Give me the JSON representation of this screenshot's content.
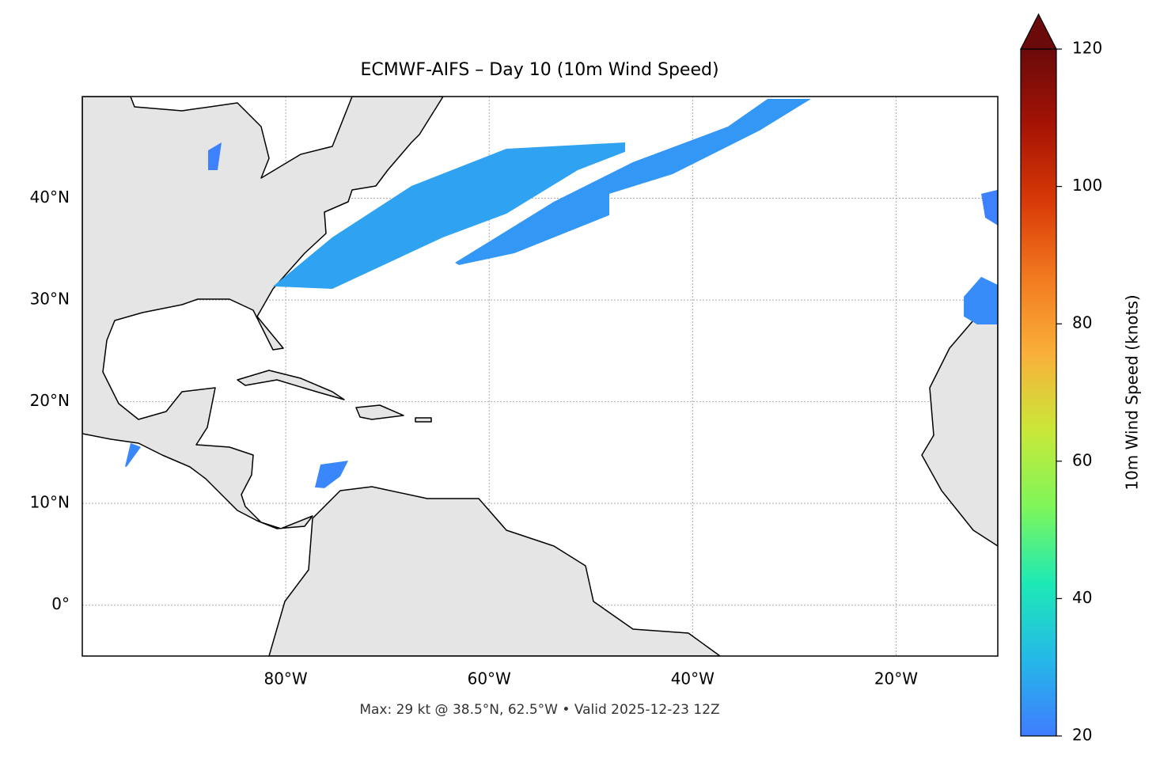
{
  "map": {
    "title": "ECMWF-AIFS – Day 10 (10m Wind Speed)",
    "footer": "Max: 29 kt @ 38.5°N, 62.5°W • Valid 2025-12-23 12Z",
    "xlim": [
      -100,
      -10
    ],
    "ylim": [
      -5,
      50
    ],
    "xticks": [
      {
        "value": -80,
        "label": "80°W"
      },
      {
        "value": -60,
        "label": "60°W"
      },
      {
        "value": -40,
        "label": "40°W"
      },
      {
        "value": -20,
        "label": "20°W"
      }
    ],
    "yticks": [
      {
        "value": 0,
        "label": "0°"
      },
      {
        "value": 10,
        "label": "10°N"
      },
      {
        "value": 20,
        "label": "20°N"
      },
      {
        "value": 30,
        "label": "30°N"
      },
      {
        "value": 40,
        "label": "40°N"
      }
    ],
    "grid": true,
    "colorbar": {
      "label": "10m Wind Speed (knots)",
      "lim": [
        20,
        120
      ],
      "ticks": [
        20,
        40,
        60,
        80,
        100,
        120
      ],
      "colormap": [
        "#3f7cff",
        "#25b8e8",
        "#1de9b6",
        "#7ef65a",
        "#c9e839",
        "#f9b03a",
        "#f27a1f",
        "#d83a07",
        "#a51304",
        "#6a0a0a"
      ]
    },
    "wind_swaths": [
      {
        "value": 27,
        "polygon": [
          [
            -81.25,
            31.34
          ],
          [
            -75.42,
            36.16
          ],
          [
            -67.64,
            41.21
          ],
          [
            -58.3,
            44.87
          ],
          [
            -46.64,
            45.49
          ],
          [
            -46.64,
            44.56
          ],
          [
            -51.3,
            42.77
          ],
          [
            -58.3,
            38.49
          ],
          [
            -64.53,
            36.16
          ],
          [
            -75.42,
            31.1
          ]
        ]
      },
      {
        "value": 25,
        "polygon": [
          [
            -63.36,
            33.67
          ],
          [
            -53.64,
            39.66
          ],
          [
            -45.86,
            43.55
          ],
          [
            -36.52,
            47.05
          ],
          [
            -32.63,
            49.77
          ],
          [
            -28.35,
            49.77
          ],
          [
            -33.41,
            46.66
          ],
          [
            -41.97,
            42.38
          ],
          [
            -48.19,
            40.44
          ],
          [
            -48.19,
            38.34
          ],
          [
            -57.53,
            34.6
          ],
          [
            -62.97,
            33.44
          ]
        ]
      },
      {
        "value": 22,
        "polygon": [
          [
            -77.13,
            11.58
          ],
          [
            -76.58,
            13.83
          ],
          [
            -73.86,
            14.21
          ],
          [
            -74.64,
            12.66
          ],
          [
            -76.19,
            11.5
          ]
        ]
      },
      {
        "value": 21,
        "polygon": [
          [
            -87.63,
            44.71
          ],
          [
            -87.63,
            42.77
          ],
          [
            -86.7,
            42.77
          ],
          [
            -86.31,
            45.49
          ]
        ]
      },
      {
        "value": 22,
        "polygon": [
          [
            -95.8,
            13.61
          ],
          [
            -95.25,
            15.94
          ],
          [
            -94.24,
            15.55
          ],
          [
            -95.64,
            13.61
          ]
        ]
      },
      {
        "value": 21,
        "polygon": [
          [
            -11.63,
            40.44
          ],
          [
            -10,
            40.83
          ],
          [
            -10,
            37.33
          ],
          [
            -11.24,
            38.1
          ]
        ]
      },
      {
        "value": 23,
        "polygon": [
          [
            -13.34,
            30.33
          ],
          [
            -11.63,
            32.27
          ],
          [
            -10,
            31.49
          ],
          [
            -10,
            27.6
          ],
          [
            -12.02,
            27.6
          ],
          [
            -13.34,
            28.38
          ]
        ]
      }
    ]
  }
}
